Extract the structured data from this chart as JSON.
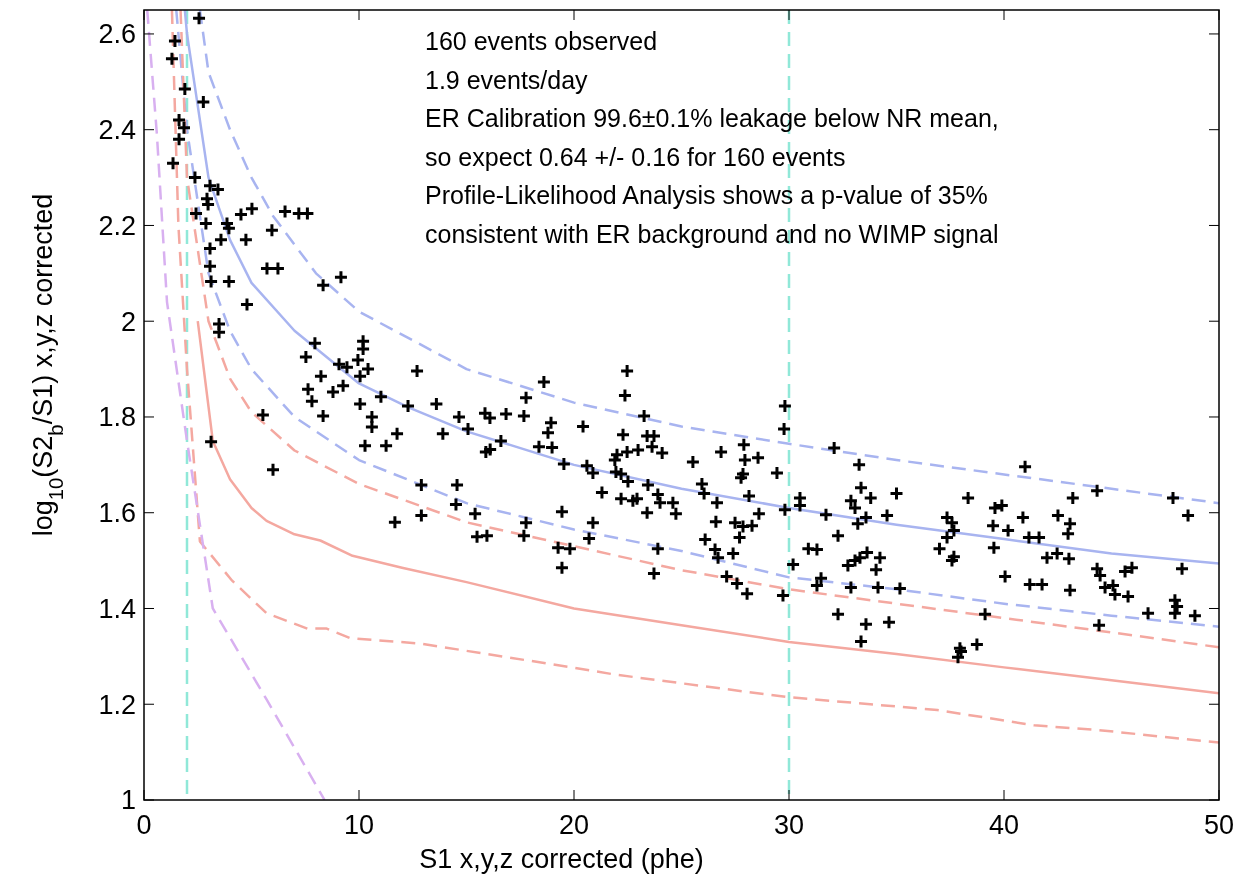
{
  "chart_data": {
    "type": "scatter",
    "xlabel": "S1 x,y,z corrected (phe)",
    "ylabel": "log$_{10}$(S2$_{b}$/S1) x,y,z corrected",
    "xlim": [
      0,
      50
    ],
    "ylim": [
      1,
      2.65
    ],
    "xticks": [
      0,
      10,
      20,
      30,
      40,
      50
    ],
    "yticks": [
      1,
      1.2,
      1.4,
      1.6,
      1.8,
      2,
      2.2,
      2.4,
      2.6
    ],
    "grid": false,
    "annotations": [
      "160 events observed",
      "1.9 events/day",
      "ER Calibration 99.6±0.1% leakage below NR mean,",
      "so expect 0.64 +/- 0.16 for 160 events",
      "Profile-Likelihood Analysis shows a p-value of 35%",
      "consistent with ER background and no WIMP signal"
    ],
    "ref_lines": [
      {
        "axis": "x",
        "value": 2,
        "color": "#90e8d8",
        "line_style": "dashed"
      },
      {
        "axis": "x",
        "value": 30,
        "color": "#90e8d8",
        "line_style": "dashed"
      }
    ],
    "series": [
      {
        "type": "line",
        "color": "#a8b4f0",
        "line_style": "solid",
        "x": [
          1.9,
          2,
          3,
          4,
          5,
          7,
          10,
          12.3,
          15,
          20,
          25,
          30,
          35,
          40,
          45,
          50
        ],
        "values": [
          2.65,
          2.6,
          2.3,
          2.17,
          2.08,
          1.98,
          1.87,
          1.82,
          1.77,
          1.7,
          1.65,
          1.61,
          1.575,
          1.545,
          1.515,
          1.494
        ]
      },
      {
        "type": "line",
        "color": "#a8b4f0",
        "line_style": "dashed",
        "x": [
          2.6,
          3,
          4,
          5,
          6,
          8,
          10,
          15,
          20,
          25,
          30,
          35,
          40,
          45,
          50
        ],
        "values": [
          2.65,
          2.52,
          2.4,
          2.3,
          2.22,
          2.1,
          2.02,
          1.9,
          1.83,
          1.78,
          1.744,
          1.71,
          1.68,
          1.65,
          1.62
        ]
      },
      {
        "type": "line",
        "color": "#a8b4f0",
        "line_style": "dashed",
        "x": [
          1.5,
          2,
          3,
          4,
          5,
          7,
          10,
          15,
          20,
          25,
          30,
          35,
          40,
          45,
          50
        ],
        "values": [
          2.65,
          2.4,
          2.1,
          1.98,
          1.9,
          1.8,
          1.71,
          1.62,
          1.565,
          1.52,
          1.465,
          1.44,
          1.41,
          1.385,
          1.362
        ]
      },
      {
        "type": "line",
        "color": "#f4a8a0",
        "line_style": "dashed",
        "x": [
          1.7,
          2,
          3,
          4,
          5,
          7,
          10,
          15,
          20,
          25,
          30,
          35,
          40,
          45,
          50
        ],
        "values": [
          2.65,
          2.3,
          2.0,
          1.88,
          1.81,
          1.73,
          1.66,
          1.58,
          1.53,
          1.48,
          1.44,
          1.41,
          1.38,
          1.35,
          1.319
        ]
      },
      {
        "type": "line",
        "color": "#f4a8a0",
        "line_style": "solid",
        "x": [
          2.5,
          3.2,
          4,
          5,
          5.7,
          7,
          8.2,
          9.7,
          12,
          15,
          20,
          25,
          30,
          35,
          40,
          45,
          50
        ],
        "values": [
          2.0,
          1.75,
          1.67,
          1.61,
          1.583,
          1.555,
          1.542,
          1.51,
          1.485,
          1.455,
          1.4,
          1.365,
          1.33,
          1.305,
          1.277,
          1.25,
          1.223
        ]
      },
      {
        "type": "line",
        "color": "#f4a8a0",
        "line_style": "dashed",
        "x": [
          1.3,
          1.6,
          2,
          2.6,
          4.1,
          5.7,
          7.6,
          8.5,
          9.6,
          12.8,
          19.9,
          21.9,
          29.9,
          36.9,
          41.4,
          44.4,
          50
        ],
        "values": [
          2.65,
          2.2,
          1.9,
          1.54,
          1.458,
          1.39,
          1.358,
          1.358,
          1.338,
          1.327,
          1.277,
          1.262,
          1.215,
          1.188,
          1.156,
          1.146,
          1.12
        ]
      },
      {
        "type": "line",
        "color": "#d8b0f0",
        "line_style": "dashed",
        "x": [
          0.15,
          0.6,
          1.07,
          2,
          3.2,
          5.7,
          8.4
        ],
        "values": [
          2.65,
          2.39,
          2.04,
          1.75,
          1.4,
          1.21,
          1
        ]
      },
      {
        "color": "#000000",
        "marker": "cross",
        "x": [
          2.56,
          1.44,
          1.3,
          1.9,
          2.76,
          1.63,
          1.86,
          1.63,
          1.35,
          2.37,
          3.07,
          3.44,
          2.93,
          2.98,
          2.42,
          2.88,
          3.86,
          3.95,
          4.51,
          5.02,
          6.56,
          7.2,
          7.6,
          5.95,
          3.58,
          3.07,
          4.74,
          3.07,
          3.12,
          3.95,
          5.72,
          6.23,
          8.33,
          9.16,
          4.79,
          3.49,
          3.49,
          7.95,
          10.19,
          10.19,
          7.53,
          9.95,
          9.07,
          9.44,
          10.42,
          8.23,
          10.05,
          12.7,
          7.63,
          8.79,
          9.26,
          7.81,
          11.02,
          10.05,
          12.28,
          10.6,
          10.6,
          8.33,
          5.53,
          11.77,
          10.28,
          11.26,
          3.12,
          6.0,
          11.67,
          12.9,
          12.9,
          13.6,
          13.9,
          14.65,
          15.07,
          15.86,
          16.09,
          15.9,
          16.1,
          16.6,
          16.84,
          17.67,
          17.77,
          18.6,
          18.93,
          18.79,
          18.37,
          18.98,
          19.53,
          20.42,
          20.6,
          20.88,
          22.47,
          22.37,
          23.26,
          22.28,
          23.4,
          23.63,
          23.72,
          22.98,
          22.47,
          22.0,
          21.9,
          21.95,
          22.19,
          24.1,
          22.51,
          21.3,
          22.19,
          22.74,
          22.93,
          23.44,
          23.9,
          24.0,
          24.6,
          24.74,
          23.4,
          14.56,
          14.51,
          15.4,
          15.49,
          15.95,
          17.77,
          17.67,
          19.44,
          19.26,
          19.81,
          19.44,
          20.88,
          20.7,
          23.9,
          23.72,
          25.53,
          25.95,
          26.05,
          26.65,
          26.84,
          26.6,
          26.1,
          26.56,
          26.7,
          27.4,
          27.1,
          27.58,
          28.05,
          27.9,
          27.95,
          28.56,
          27.86,
          27.77,
          28.14,
          28.6,
          27.49,
          27.86,
          28.28,
          27.7,
          29.44,
          29.81,
          29.77,
          29.81,
          29.72,
          30.19,
          30.51,
          30.51,
          30.9,
          31.3,
          32.1,
          33.26,
          33.35,
          33.8,
          32.88,
          33.07,
          31.72,
          33.58,
          33.2,
          34.56,
          35.0,
          32.28,
          33.63,
          34.23,
          32.74,
          33.07,
          33.3,
          34.05,
          31.49,
          31.3,
          32.88,
          34.14,
          35.16,
          32.28,
          33.58,
          33.35,
          34.65,
          38.33,
          37.35,
          37.58,
          37.67,
          37.35,
          37.0,
          37.67,
          37.58,
          39.49,
          39.58,
          39.9,
          40.19,
          39.53,
          40.88,
          41.16,
          41.63,
          42.51,
          43.07,
          42.98,
          43.2,
          40.98,
          42.0,
          42.47,
          43.02,
          40.05,
          41.2,
          41.77,
          43.07,
          39.12,
          37.95,
          37.86,
          38.74,
          38.0,
          44.33,
          44.33,
          44.47,
          44.7,
          45.07,
          45.16,
          45.63,
          45.95,
          45.77,
          44.42,
          46.7,
          47.86,
          48.56,
          48.28,
          47.95,
          48.05,
          47.95,
          48.88
        ],
        "values": [
          2.633,
          2.585,
          2.548,
          2.485,
          2.458,
          2.42,
          2.404,
          2.38,
          2.33,
          2.3,
          2.283,
          2.275,
          2.256,
          2.244,
          2.225,
          2.204,
          2.204,
          2.194,
          2.223,
          2.235,
          2.229,
          2.225,
          2.225,
          2.19,
          2.17,
          2.152,
          2.17,
          2.115,
          2.083,
          2.083,
          2.11,
          2.11,
          2.075,
          2.092,
          2.035,
          1.994,
          1.977,
          1.954,
          1.958,
          1.942,
          1.925,
          1.919,
          1.91,
          1.904,
          1.9,
          1.885,
          1.885,
          1.896,
          1.858,
          1.852,
          1.865,
          1.833,
          1.842,
          1.827,
          1.823,
          1.8,
          1.779,
          1.802,
          1.804,
          1.765,
          1.74,
          1.74,
          1.748,
          1.69,
          1.58,
          1.658,
          1.594,
          1.827,
          1.765,
          1.8,
          1.775,
          1.808,
          1.798,
          1.727,
          1.732,
          1.75,
          1.806,
          1.802,
          1.84,
          1.873,
          1.788,
          1.767,
          1.738,
          1.736,
          1.702,
          1.78,
          1.698,
          1.683,
          1.896,
          1.845,
          1.802,
          1.763,
          1.76,
          1.738,
          1.76,
          1.731,
          1.727,
          1.721,
          1.71,
          1.685,
          1.681,
          1.725,
          1.665,
          1.642,
          1.629,
          1.625,
          1.629,
          1.658,
          1.638,
          1.621,
          1.621,
          1.598,
          1.6,
          1.658,
          1.617,
          1.598,
          1.55,
          1.552,
          1.579,
          1.552,
          1.602,
          1.527,
          1.525,
          1.485,
          1.579,
          1.546,
          1.525,
          1.473,
          1.706,
          1.66,
          1.64,
          1.621,
          1.727,
          1.581,
          1.544,
          1.523,
          1.506,
          1.515,
          1.467,
          1.452,
          1.431,
          1.742,
          1.71,
          1.715,
          1.681,
          1.673,
          1.635,
          1.598,
          1.579,
          1.571,
          1.573,
          1.548,
          1.683,
          1.823,
          1.775,
          1.606,
          1.427,
          1.492,
          1.631,
          1.615,
          1.525,
          1.523,
          1.735,
          1.7,
          1.652,
          1.631,
          1.625,
          1.61,
          1.596,
          1.59,
          1.577,
          1.594,
          1.64,
          1.552,
          1.517,
          1.506,
          1.49,
          1.5,
          1.506,
          1.481,
          1.463,
          1.448,
          1.444,
          1.444,
          1.442,
          1.388,
          1.367,
          1.331,
          1.371,
          1.631,
          1.59,
          1.579,
          1.563,
          1.548,
          1.525,
          1.508,
          1.5,
          1.573,
          1.61,
          1.615,
          1.563,
          1.527,
          1.59,
          1.548,
          1.548,
          1.594,
          1.577,
          1.556,
          1.631,
          1.696,
          1.506,
          1.515,
          1.504,
          1.467,
          1.45,
          1.45,
          1.438,
          1.388,
          1.317,
          1.298,
          1.325,
          1.31,
          1.646,
          1.483,
          1.469,
          1.444,
          1.448,
          1.429,
          1.477,
          1.485,
          1.425,
          1.365,
          1.39,
          1.631,
          1.594,
          1.483,
          1.417,
          1.404,
          1.39,
          1.385
        ]
      }
    ]
  }
}
